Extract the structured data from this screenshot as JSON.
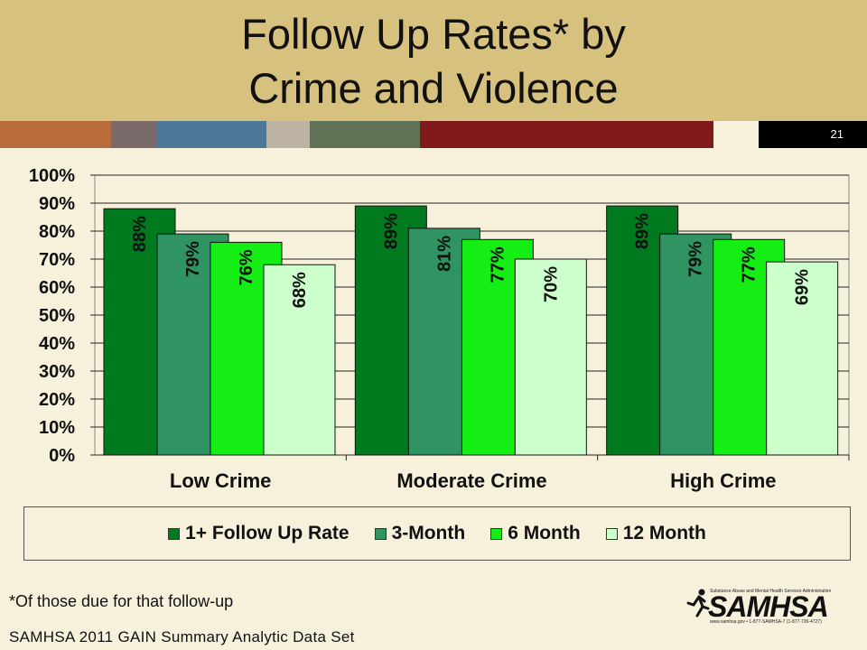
{
  "slide": {
    "title_line1": "Follow Up Rates* by",
    "title_line2": "Crime and Violence",
    "number": "21",
    "footnote": "*Of those due for that follow-up",
    "source": "SAMHSA 2011 GAIN Summary Analytic Data Set",
    "logo": {
      "text": "SAMHSA",
      "tagline": "Substance Abuse and Mental Health Services Administration",
      "contact": "www.samhsa.gov • 1-877-SAMHSA-7 (1-877-726-4727)"
    },
    "band_colors": [
      "#b86b3b",
      "#7b6a6a",
      "#4f7797",
      "#bcb3a2",
      "#5f7256",
      "#801a1d",
      "#f7f1dc"
    ]
  },
  "chart_data": {
    "type": "bar",
    "title": "",
    "xlabel": "",
    "ylabel": "",
    "categories": [
      "Low Crime",
      "Moderate Crime",
      "High Crime"
    ],
    "series": [
      {
        "name": "1+ Follow Up Rate",
        "color": "#007a1f",
        "values": [
          88,
          89,
          89
        ],
        "labels": [
          "88%",
          "89%",
          "89%"
        ]
      },
      {
        "name": "3-Month",
        "color": "#2f9462",
        "values": [
          79,
          81,
          79
        ],
        "labels": [
          "79%",
          "81%",
          "79%"
        ]
      },
      {
        "name": "6 Month",
        "color": "#14ee14",
        "values": [
          76,
          77,
          77
        ],
        "labels": [
          "76%",
          "77%",
          "77%"
        ]
      },
      {
        "name": "12 Month",
        "color": "#ccffcc",
        "values": [
          68,
          70,
          69
        ],
        "labels": [
          "68%",
          "70%",
          "69%"
        ]
      }
    ],
    "ylim": [
      0,
      100
    ],
    "yticks": [
      "0%",
      "10%",
      "20%",
      "30%",
      "40%",
      "50%",
      "60%",
      "70%",
      "80%",
      "90%",
      "100%"
    ],
    "grid": true,
    "legend": "bottom"
  }
}
